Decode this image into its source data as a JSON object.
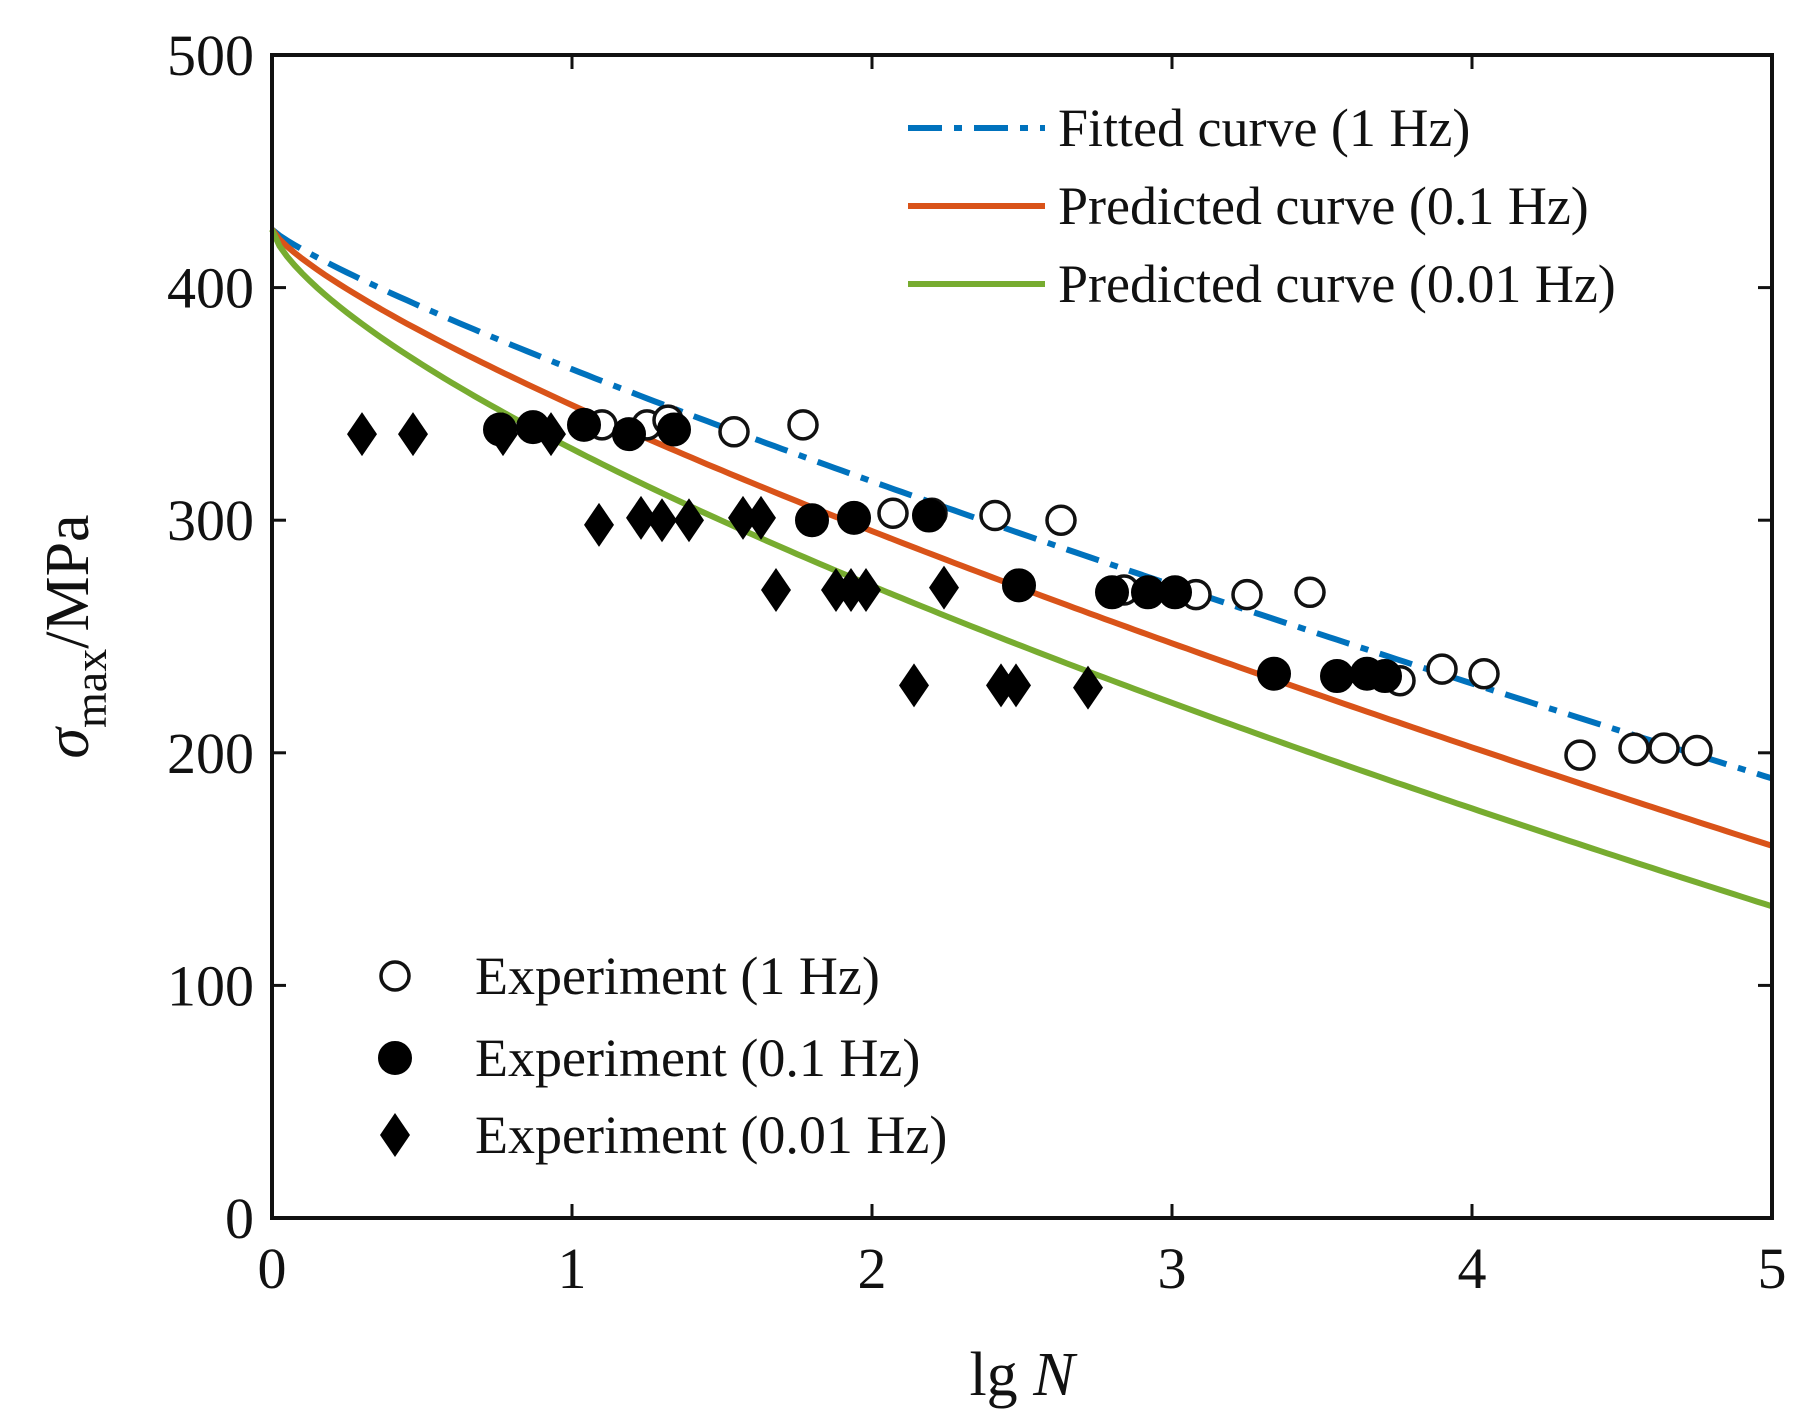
{
  "chart_data": {
    "type": "scatter",
    "xlabel": {
      "prefix": "lg ",
      "italic": "N"
    },
    "ylabel": {
      "symbol": "σ",
      "subscript": "max",
      "suffix": "/MPa"
    },
    "xlim": [
      0,
      5
    ],
    "ylim": [
      0,
      500
    ],
    "xticks": [
      0,
      1,
      2,
      3,
      4,
      5
    ],
    "yticks": [
      0,
      100,
      200,
      300,
      400,
      500
    ],
    "grid": false,
    "curves": [
      {
        "name": "Fitted curve (1 Hz)",
        "color": "#0072BD",
        "style": "dashdot",
        "y0": 425,
        "y5": 189,
        "shape": 0.85
      },
      {
        "name": "Predicted curve (0.1 Hz)",
        "color": "#D95319",
        "style": "solid",
        "y0": 425,
        "y5": 160,
        "shape": 0.78
      },
      {
        "name": "Predicted curve (0.01 Hz)",
        "color": "#77AC30",
        "style": "solid",
        "y0": 425,
        "y5": 134,
        "shape": 0.7
      }
    ],
    "series": [
      {
        "name": "Experiment (1 Hz)",
        "marker": "open-circle",
        "points": [
          [
            1.1,
            341
          ],
          [
            1.25,
            341
          ],
          [
            1.32,
            343
          ],
          [
            1.54,
            338
          ],
          [
            1.77,
            341
          ],
          [
            2.07,
            303
          ],
          [
            2.2,
            303
          ],
          [
            2.41,
            302
          ],
          [
            2.63,
            300
          ],
          [
            2.84,
            270
          ],
          [
            3.08,
            268
          ],
          [
            3.25,
            268
          ],
          [
            3.46,
            269
          ],
          [
            3.76,
            231
          ],
          [
            3.9,
            236
          ],
          [
            4.04,
            234
          ],
          [
            4.36,
            199
          ],
          [
            4.54,
            202
          ],
          [
            4.64,
            202
          ],
          [
            4.75,
            201
          ]
        ]
      },
      {
        "name": "Experiment (0.1 Hz)",
        "marker": "filled-circle",
        "points": [
          [
            0.76,
            339
          ],
          [
            0.87,
            340
          ],
          [
            1.04,
            341
          ],
          [
            1.19,
            337
          ],
          [
            1.34,
            339
          ],
          [
            1.8,
            300
          ],
          [
            1.94,
            301
          ],
          [
            2.19,
            302
          ],
          [
            2.49,
            272
          ],
          [
            2.8,
            269
          ],
          [
            2.92,
            269
          ],
          [
            3.01,
            269
          ],
          [
            3.34,
            234
          ],
          [
            3.55,
            233
          ],
          [
            3.65,
            234
          ],
          [
            3.71,
            233
          ]
        ]
      },
      {
        "name": "Experiment (0.01 Hz)",
        "marker": "filled-diamond",
        "points": [
          [
            0.3,
            337
          ],
          [
            0.47,
            337
          ],
          [
            0.77,
            337
          ],
          [
            0.93,
            337
          ],
          [
            1.09,
            298
          ],
          [
            1.23,
            301
          ],
          [
            1.3,
            300
          ],
          [
            1.39,
            300
          ],
          [
            1.57,
            301
          ],
          [
            1.63,
            301
          ],
          [
            1.68,
            270
          ],
          [
            1.88,
            270
          ],
          [
            1.93,
            270
          ],
          [
            1.98,
            270
          ],
          [
            2.24,
            271
          ],
          [
            2.14,
            229
          ],
          [
            2.43,
            229
          ],
          [
            2.48,
            229
          ],
          [
            2.72,
            228
          ]
        ]
      }
    ],
    "legend_lines_position": "top-right",
    "legend_markers_position": "bottom-left"
  }
}
